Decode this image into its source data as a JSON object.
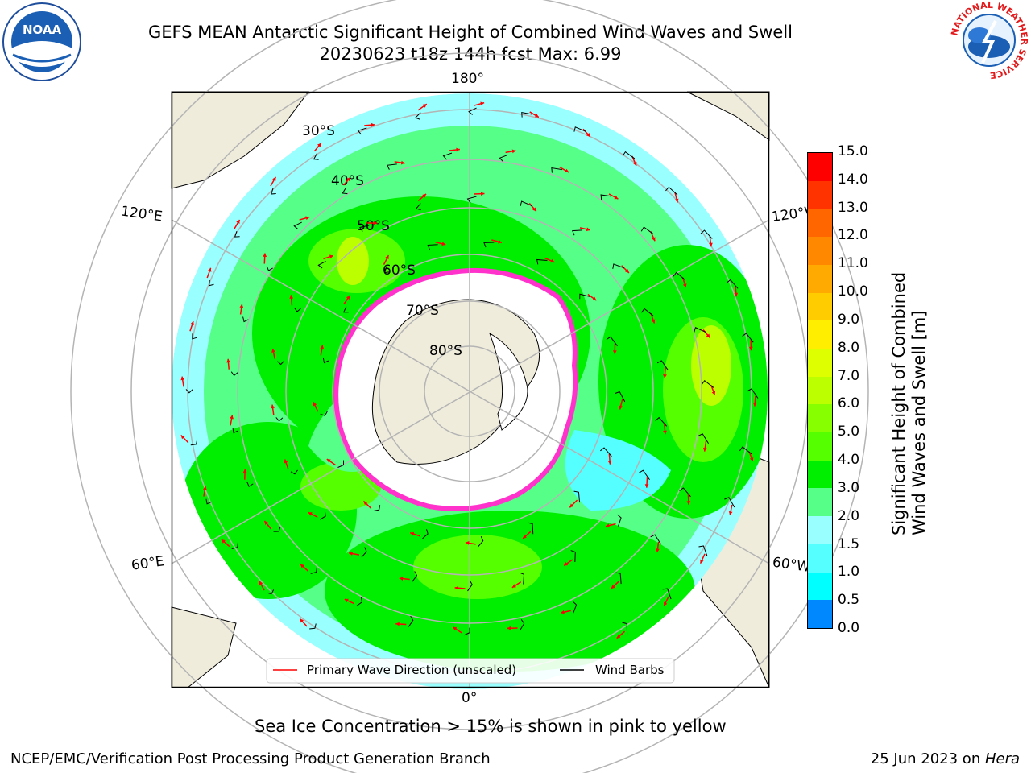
{
  "header": {
    "title_line1": "GEFS MEAN Antarctic Significant Height of Combined Wind Waves and Swell",
    "title_line2": "20230623 t18z 144h fcst   Max: 6.99"
  },
  "map": {
    "longitude_labels": {
      "top": "180°",
      "bottom": "0°",
      "upper_left": "120°E",
      "upper_right": "120°W",
      "lower_left": "60°E",
      "lower_right": "60°W"
    },
    "latitude_labels": [
      "30°S",
      "40°S",
      "50°S",
      "60°S",
      "70°S",
      "80°S"
    ],
    "colors": {
      "land": "#efecdc",
      "ice": "#ffffff",
      "ice_edge": "#ff33cc",
      "grid": "#b4b4b4",
      "wave_arrow": "#ff0000",
      "wind_barb": "#000000"
    }
  },
  "legend": {
    "wave_direction": "Primary Wave Direction (unscaled)",
    "wind_barbs": "Wind Barbs"
  },
  "colorbar": {
    "label_line1": "Significant Height of Combined",
    "label_line2": "Wind Waves and Swell [m]",
    "ticks": [
      "15.0",
      "14.0",
      "13.0",
      "12.0",
      "11.0",
      "10.0",
      "9.0",
      "8.0",
      "7.0",
      "6.0",
      "5.0",
      "4.0",
      "3.0",
      "2.0",
      "1.5",
      "1.0",
      "0.5",
      "0.0"
    ],
    "colors": [
      "#ff0000",
      "#ff3300",
      "#ff6600",
      "#ff8800",
      "#ffaa00",
      "#ffcc00",
      "#ffee00",
      "#ddff00",
      "#bbff00",
      "#88ff00",
      "#55ff00",
      "#00ee00",
      "#55ff88",
      "#99ffff",
      "#55ffff",
      "#00ffff",
      "#0088ff",
      "#0000ff"
    ]
  },
  "note": "Sea Ice Concentration > 15% is shown in pink to yellow",
  "footer": {
    "left": "NCEP/EMC/Verification Post Processing Product Generation Branch",
    "date": "25 Jun 2023 on ",
    "host": "Hera"
  },
  "logos": {
    "noaa_text": "NOAA",
    "nws_text": "NATIONAL WEATHER SERVICE"
  }
}
